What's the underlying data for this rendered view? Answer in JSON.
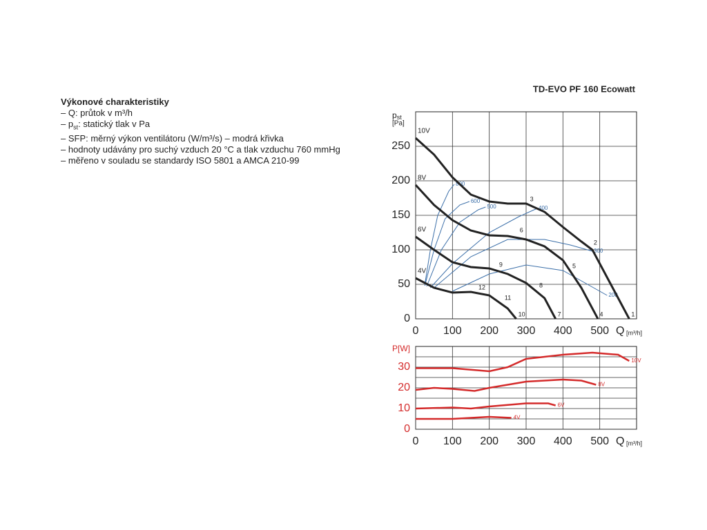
{
  "description": {
    "heading": "Výkonové charakteristiky",
    "items": [
      [
        "– Q: průtok v m³/h"
      ],
      [
        "– p",
        "st",
        ": statický tlak v Pa"
      ],
      [
        "– SFP: měrný výkon ventilátoru (W/m³/s) – modrá křivka"
      ],
      [
        "– hodnoty udávány pro suchý vzduch 20 °C a tlak vzduchu 760 mmHg"
      ],
      [
        "– měřeno v souladu se standardy ISO 5801 a AMCA 210-99"
      ]
    ]
  },
  "chart_data": [
    {
      "type": "line",
      "title": "TD-EVO PF 160 Ecowatt",
      "ylabel": [
        "p",
        "st"
      ],
      "yunit": "[Pa]",
      "xlabel": "Q",
      "xunit": "[m³/h]",
      "xlim": [
        0,
        600
      ],
      "ylim": [
        0,
        300
      ],
      "xticks": [
        0,
        100,
        200,
        300,
        400,
        500
      ],
      "yticks": [
        0,
        50,
        100,
        150,
        200,
        250
      ],
      "grid": true,
      "series": [
        {
          "name": "10V",
          "color": "#222222",
          "x": [
            0,
            50,
            100,
            150,
            200,
            250,
            300,
            350,
            400,
            450,
            480,
            500,
            540,
            580
          ],
          "values": [
            262,
            238,
            205,
            180,
            170,
            167,
            167,
            155,
            133,
            112,
            100,
            80,
            40,
            0
          ]
        },
        {
          "name": "8V",
          "color": "#222222",
          "x": [
            0,
            50,
            100,
            150,
            200,
            250,
            300,
            350,
            400,
            450,
            495
          ],
          "values": [
            194,
            165,
            143,
            128,
            121,
            120,
            115,
            105,
            85,
            45,
            0
          ]
        },
        {
          "name": "6V",
          "color": "#222222",
          "x": [
            0,
            50,
            100,
            150,
            200,
            250,
            300,
            350,
            380
          ],
          "values": [
            119,
            100,
            82,
            75,
            73,
            65,
            52,
            30,
            0
          ]
        },
        {
          "name": "4V",
          "color": "#222222",
          "x": [
            0,
            50,
            100,
            150,
            200,
            250,
            273
          ],
          "values": [
            59,
            45,
            38,
            39,
            34,
            15,
            0
          ]
        }
      ],
      "sfp": [
        {
          "name": "800",
          "color": "#3a6ea8",
          "x": [
            25,
            40,
            60,
            90,
            105
          ],
          "values": [
            50,
            100,
            150,
            185,
            195
          ]
        },
        {
          "name": "600",
          "color": "#3a6ea8",
          "x": [
            25,
            50,
            80,
            120,
            146
          ],
          "values": [
            48,
            100,
            145,
            165,
            170
          ]
        },
        {
          "name": "500",
          "color": "#3a6ea8",
          "x": [
            30,
            70,
            120,
            170,
            190
          ],
          "values": [
            47,
            100,
            140,
            158,
            162
          ]
        },
        {
          "name": "400",
          "color": "#3a6ea8",
          "x": [
            40,
            100,
            200,
            280,
            330
          ],
          "values": [
            45,
            80,
            125,
            148,
            160
          ]
        },
        {
          "name": "300",
          "color": "#3a6ea8",
          "x": [
            50,
            150,
            250,
            350,
            420,
            480
          ],
          "values": [
            45,
            90,
            115,
            115,
            107,
            98
          ]
        },
        {
          "name": "200",
          "color": "#3a6ea8",
          "x": [
            100,
            200,
            300,
            400,
            450,
            520
          ],
          "values": [
            40,
            65,
            78,
            70,
            55,
            34
          ]
        }
      ],
      "points": [
        {
          "label": "1",
          "x": 580,
          "y": 0
        },
        {
          "label": "2",
          "x": 478,
          "y": 104
        },
        {
          "label": "3",
          "x": 305,
          "y": 167
        },
        {
          "label": "4",
          "x": 494,
          "y": 0
        },
        {
          "label": "5",
          "x": 420,
          "y": 70
        },
        {
          "label": "6",
          "x": 277,
          "y": 122
        },
        {
          "label": "7",
          "x": 380,
          "y": 0
        },
        {
          "label": "8",
          "x": 330,
          "y": 42
        },
        {
          "label": "9",
          "x": 221,
          "y": 72
        },
        {
          "label": "10",
          "x": 273,
          "y": 0
        },
        {
          "label": "11",
          "x": 236,
          "y": 24
        },
        {
          "label": "12",
          "x": 165,
          "y": 39
        }
      ]
    },
    {
      "type": "line",
      "ylabel": [
        "P[W]"
      ],
      "xlabel": "Q",
      "xunit": "[m³/h]",
      "xlim": [
        0,
        600
      ],
      "ylim": [
        0,
        40
      ],
      "xticks": [
        0,
        100,
        200,
        300,
        400,
        500
      ],
      "yticks": [
        0,
        10,
        20,
        30
      ],
      "minor_yticks": [
        5,
        15,
        25,
        35
      ],
      "grid": true,
      "series": [
        {
          "name": "10V",
          "color": "#d42a2a",
          "x": [
            0,
            100,
            200,
            250,
            300,
            400,
            480,
            550,
            580
          ],
          "values": [
            29.5,
            29.5,
            28,
            30,
            34,
            36,
            37,
            36,
            33
          ]
        },
        {
          "name": "8V",
          "color": "#d42a2a",
          "x": [
            0,
            50,
            100,
            160,
            200,
            300,
            400,
            450,
            490
          ],
          "values": [
            19,
            20,
            19.5,
            18.5,
            20,
            23,
            24,
            23.5,
            21.5
          ]
        },
        {
          "name": "6V",
          "color": "#d42a2a",
          "x": [
            0,
            100,
            150,
            200,
            300,
            360,
            380
          ],
          "values": [
            10,
            10.5,
            10,
            11,
            12.5,
            12.5,
            11.5
          ]
        },
        {
          "name": "4V",
          "color": "#d42a2a",
          "x": [
            0,
            100,
            200,
            260
          ],
          "values": [
            5,
            5,
            6,
            5.5
          ]
        }
      ]
    }
  ]
}
